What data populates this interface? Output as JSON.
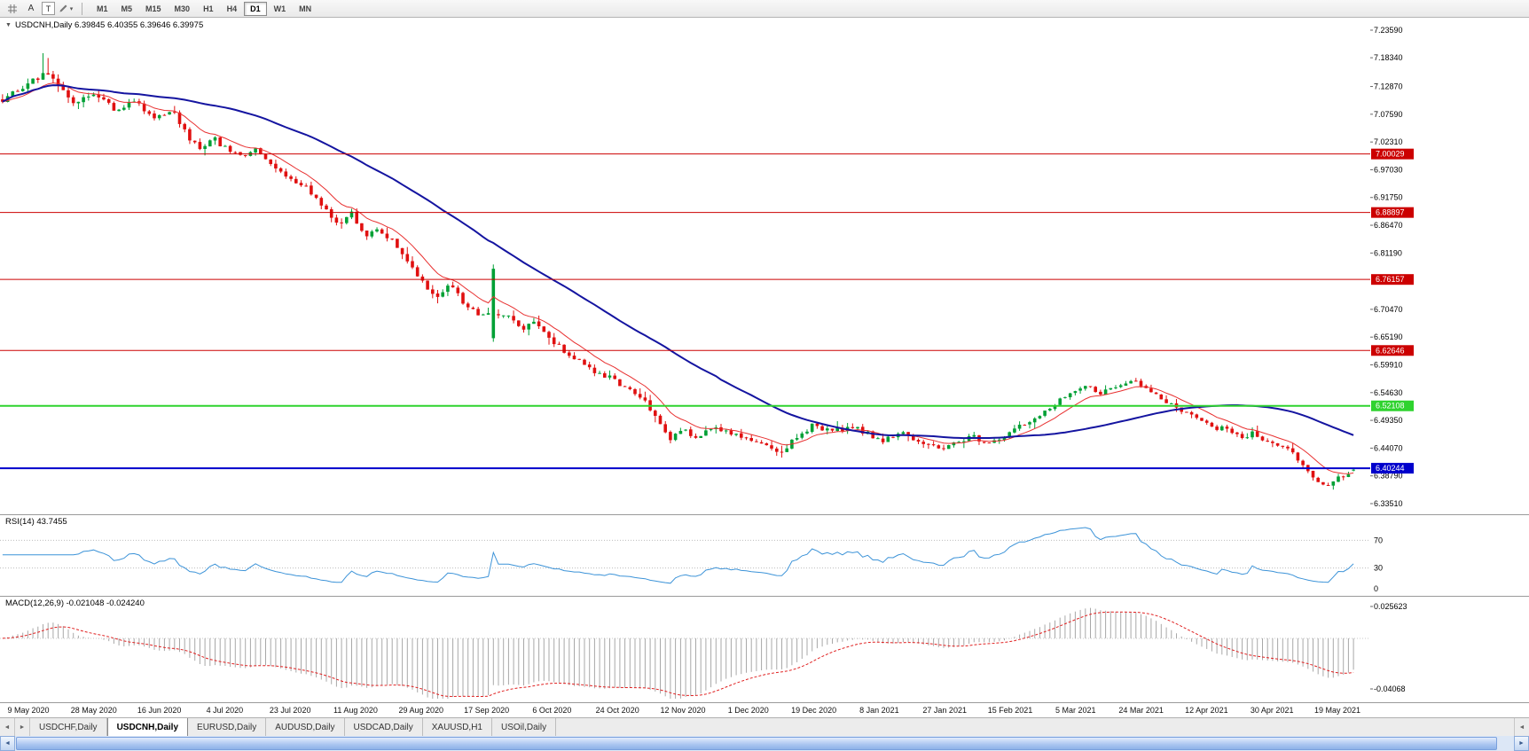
{
  "toolbar": {
    "a_label": "A",
    "t_label": "T",
    "timeframes": [
      "M1",
      "M5",
      "M15",
      "M30",
      "H1",
      "H4",
      "D1",
      "W1",
      "MN"
    ],
    "active_timeframe": "D1"
  },
  "icons": {
    "title_arrow": "▼",
    "dropdown": "▾",
    "left_small": "◄",
    "right_small": "►"
  },
  "chart_data": {
    "type": "candlestick",
    "symbol": "USDCNH",
    "period": "Daily",
    "title_text": "USDCNH,Daily 6.39845 6.40355 6.39646 6.39975",
    "ohlc": {
      "open": 6.39845,
      "high": 6.40355,
      "low": 6.39646,
      "close": 6.39975
    },
    "price_axis": {
      "min": 6.3351,
      "max": 7.2359,
      "ticks": [
        "7.23590",
        "7.18340",
        "7.12870",
        "7.07590",
        "7.02310",
        "6.97030",
        "6.91750",
        "6.86470",
        "6.81190",
        "6.70470",
        "6.65190",
        "6.59910",
        "6.54630",
        "6.49350",
        "6.44070",
        "6.38790",
        "6.33510"
      ]
    },
    "hlines": [
      {
        "price": 7.00029,
        "label": "7.00029",
        "color": "#cc0000",
        "width": 1
      },
      {
        "price": 6.88897,
        "label": "6.88897",
        "color": "#cc0000",
        "width": 1
      },
      {
        "price": 6.76157,
        "label": "6.76157",
        "color": "#cc0000",
        "width": 1
      },
      {
        "price": 6.62646,
        "label": "6.62646",
        "color": "#cc0000",
        "width": 1
      },
      {
        "price": 6.52108,
        "label": "6.52108",
        "color": "#2fd32f",
        "width": 2
      },
      {
        "price": 6.40244,
        "label": "6.40244",
        "color": "#0000cc",
        "width": 2
      }
    ],
    "candles": {
      "count": 268,
      "seed": 7,
      "colors": {
        "up": "#00a035",
        "down": "#e01010"
      },
      "path": [
        [
          0.0,
          7.105
        ],
        [
          0.015,
          7.128
        ],
        [
          0.03,
          7.152
        ],
        [
          0.04,
          7.138
        ],
        [
          0.052,
          7.096
        ],
        [
          0.068,
          7.118
        ],
        [
          0.083,
          7.085
        ],
        [
          0.098,
          7.1
        ],
        [
          0.113,
          7.066
        ],
        [
          0.126,
          7.08
        ],
        [
          0.138,
          7.032
        ],
        [
          0.147,
          7.002
        ],
        [
          0.156,
          7.03
        ],
        [
          0.168,
          7.006
        ],
        [
          0.178,
          6.992
        ],
        [
          0.188,
          7.008
        ],
        [
          0.2,
          6.972
        ],
        [
          0.214,
          6.955
        ],
        [
          0.227,
          6.93
        ],
        [
          0.239,
          6.9
        ],
        [
          0.249,
          6.862
        ],
        [
          0.258,
          6.888
        ],
        [
          0.268,
          6.848
        ],
        [
          0.28,
          6.856
        ],
        [
          0.292,
          6.826
        ],
        [
          0.303,
          6.782
        ],
        [
          0.313,
          6.752
        ],
        [
          0.322,
          6.728
        ],
        [
          0.331,
          6.754
        ],
        [
          0.342,
          6.712
        ],
        [
          0.353,
          6.694
        ],
        [
          0.365,
          6.7
        ],
        [
          0.374,
          6.69
        ],
        [
          0.384,
          6.664
        ],
        [
          0.394,
          6.684
        ],
        [
          0.406,
          6.648
        ],
        [
          0.418,
          6.622
        ],
        [
          0.43,
          6.6
        ],
        [
          0.443,
          6.582
        ],
        [
          0.455,
          6.566
        ],
        [
          0.467,
          6.546
        ],
        [
          0.477,
          6.528
        ],
        [
          0.486,
          6.49
        ],
        [
          0.493,
          6.458
        ],
        [
          0.502,
          6.478
        ],
        [
          0.513,
          6.462
        ],
        [
          0.525,
          6.48
        ],
        [
          0.538,
          6.468
        ],
        [
          0.551,
          6.456
        ],
        [
          0.563,
          6.448
        ],
        [
          0.576,
          6.434
        ],
        [
          0.588,
          6.462
        ],
        [
          0.6,
          6.486
        ],
        [
          0.613,
          6.47
        ],
        [
          0.627,
          6.482
        ],
        [
          0.64,
          6.468
        ],
        [
          0.653,
          6.456
        ],
        [
          0.666,
          6.468
        ],
        [
          0.679,
          6.452
        ],
        [
          0.692,
          6.438
        ],
        [
          0.705,
          6.452
        ],
        [
          0.718,
          6.466
        ],
        [
          0.73,
          6.448
        ],
        [
          0.742,
          6.462
        ],
        [
          0.754,
          6.486
        ],
        [
          0.766,
          6.504
        ],
        [
          0.778,
          6.522
        ],
        [
          0.79,
          6.544
        ],
        [
          0.802,
          6.554
        ],
        [
          0.814,
          6.546
        ],
        [
          0.826,
          6.558
        ],
        [
          0.838,
          6.568
        ],
        [
          0.848,
          6.552
        ],
        [
          0.858,
          6.533
        ],
        [
          0.868,
          6.518
        ],
        [
          0.878,
          6.505
        ],
        [
          0.888,
          6.492
        ],
        [
          0.898,
          6.481
        ],
        [
          0.908,
          6.472
        ],
        [
          0.918,
          6.462
        ],
        [
          0.926,
          6.47
        ],
        [
          0.934,
          6.458
        ],
        [
          0.942,
          6.448
        ],
        [
          0.95,
          6.44
        ],
        [
          0.958,
          6.421
        ],
        [
          0.966,
          6.396
        ],
        [
          0.973,
          6.376
        ],
        [
          0.98,
          6.363
        ],
        [
          0.987,
          6.377
        ],
        [
          0.994,
          6.394
        ],
        [
          1.0,
          6.399
        ]
      ],
      "features": [
        {
          "frac": 0.031,
          "high": 7.192
        },
        {
          "frac": 0.034,
          "high": 7.183
        },
        {
          "frac": 0.362,
          "open": 6.65,
          "close": 6.782,
          "high": 6.79,
          "low": 6.643
        }
      ],
      "last": {
        "open": 6.39845,
        "high": 6.40355,
        "low": 6.39646,
        "close": 6.39975
      }
    },
    "moving_averages": [
      {
        "type": "ema",
        "period": 10,
        "color": "#e83030",
        "width": 1
      },
      {
        "type": "sma",
        "period": 45,
        "color": "#1414a0",
        "width": 2
      }
    ],
    "rsi": {
      "header": "RSI(14) 43.7455",
      "period": 14,
      "color": "#3c93d8",
      "levels": [
        "70",
        "30",
        "0"
      ]
    },
    "macd": {
      "header": "MACD(12,26,9) -0.021048 -0.024240",
      "fast": 12,
      "slow": 26,
      "signal": 9,
      "hist_color": "#a8a8a8",
      "signal_color": "#e02020",
      "axis_labels": [
        "0.025623",
        "-0.04068"
      ]
    },
    "dates": [
      "9 May 2020",
      "28 May 2020",
      "16 Jun 2020",
      "4 Jul 2020",
      "23 Jul 2020",
      "11 Aug 2020",
      "29 Aug 2020",
      "17 Sep 2020",
      "6 Oct 2020",
      "24 Oct 2020",
      "12 Nov 2020",
      "1 Dec 2020",
      "19 Dec 2020",
      "8 Jan 2021",
      "27 Jan 2021",
      "15 Feb 2021",
      "5 Mar 2021",
      "24 Mar 2021",
      "12 Apr 2021",
      "30 Apr 2021",
      "19 May 2021"
    ]
  },
  "tabs": {
    "items": [
      "USDCHF,Daily",
      "USDCNH,Daily",
      "EURUSD,Daily",
      "AUDUSD,Daily",
      "USDCAD,Daily",
      "XAUUSD,H1",
      "USOil,Daily"
    ],
    "active": "USDCNH,Daily"
  }
}
